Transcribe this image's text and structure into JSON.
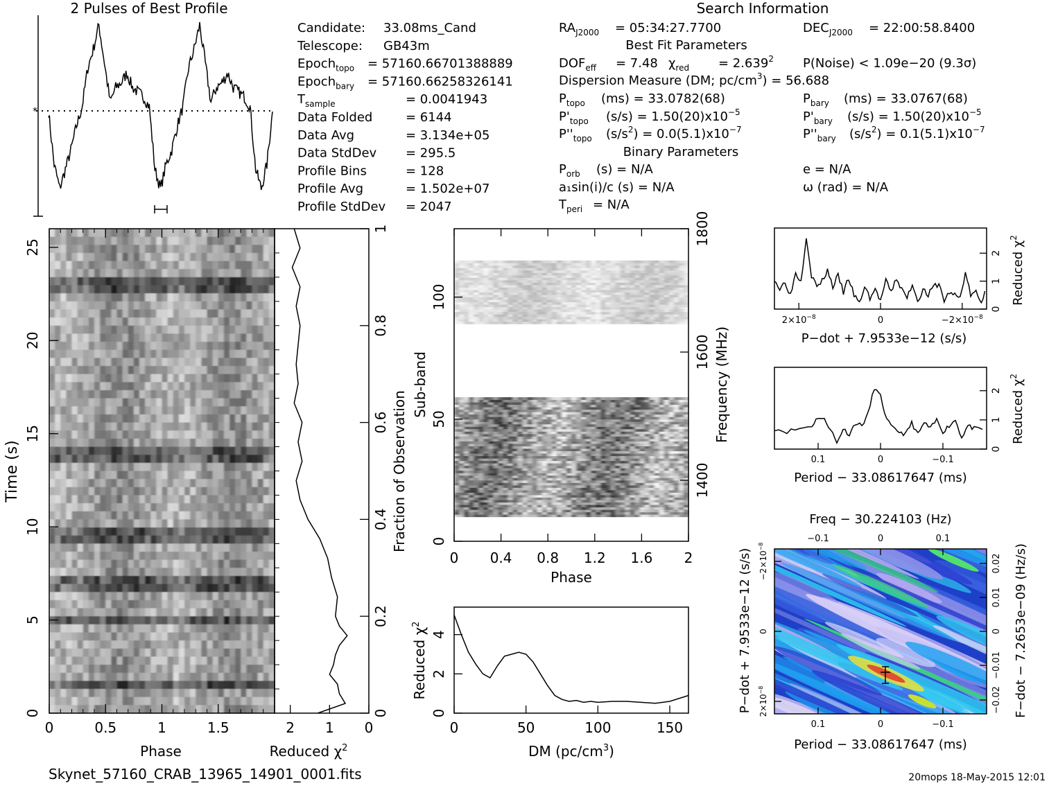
{
  "page": {
    "title_profile": "2 Pulses of Best Profile",
    "title_search": "Search Information",
    "filename": "Skynet_57160_CRAB_13965_14901_0001.fits",
    "footer": "20mops 18-May-2015 12:01"
  },
  "info": {
    "left": [
      {
        "label": "Candidate:",
        "value": "33.08ms_Cand"
      },
      {
        "label": "Telescope:",
        "value": "GB43m"
      },
      {
        "label": "Epoch",
        "sub": "topo",
        "value": "= 57160.66701388889"
      },
      {
        "label": "Epoch",
        "sub": "bary",
        "value": "= 57160.66258326141"
      },
      {
        "label": "T",
        "sub": "sample",
        "value": "=   0.0041943"
      },
      {
        "label": "Data Folded",
        "value": "=   6144"
      },
      {
        "label": "Data Avg",
        "value": "=   3.134e+05"
      },
      {
        "label": "Data StdDev",
        "value": "=   295.5"
      },
      {
        "label": "Profile Bins",
        "value": "=   128"
      },
      {
        "label": "Profile Avg",
        "value": "=   1.502e+07"
      },
      {
        "label": "Profile StdDev",
        "value": "=   2047"
      }
    ],
    "ra": {
      "label": "RA",
      "sub": "J2000",
      "value": "= 05:34:27.7700"
    },
    "dec": {
      "label": "DEC",
      "sub": "J2000",
      "value": "= 22:00:58.8400"
    },
    "best_fit_title": "Best Fit Parameters",
    "dof": {
      "label": "DOF",
      "sub": "eff",
      "value": "= 7.48"
    },
    "chi2": {
      "label": "χ",
      "sup": "2",
      "sub": "red",
      "value": "= 2.639"
    },
    "pnoise": "P(Noise) < 1.09e−20   (9.3σ)",
    "dm": {
      "text": "Dispersion Measure (DM; pc/cm",
      "sup": "3",
      "tail": ") = 56.688"
    },
    "p_topo": {
      "label": "P",
      "sub": "topo",
      "value": "(ms) =  33.0782(68)"
    },
    "pd_topo": {
      "label": "P'",
      "sub": "topo",
      "value": "(s/s) =  1.50(20)x10",
      "exp": "−5"
    },
    "pdd_topo": {
      "label": "P''",
      "sub": "topo",
      "value": "(s/s",
      "sup": "2",
      "tail": ") = 0.0(5.1)x10",
      "exp": "−7"
    },
    "p_bary": {
      "label": "P",
      "sub": "bary",
      "value": "(ms) =  33.0767(68)"
    },
    "pd_bary": {
      "label": "P'",
      "sub": "bary",
      "value": "(s/s) =  1.50(20)x10",
      "exp": "−5"
    },
    "pdd_bary": {
      "label": "P''",
      "sub": "bary",
      "value": "(s/s",
      "sup": "2",
      "tail": ") =  0.1(5.1)x10",
      "exp": "−7"
    },
    "binary_title": "Binary Parameters",
    "porb": {
      "label": "P",
      "sub": "orb",
      "value": "(s) = N/A"
    },
    "a1": "a₁sin(i)/c (s) = N/A",
    "tperi": {
      "label": "T",
      "sub": "peri",
      "value": "= N/A"
    },
    "ecc": "e = N/A",
    "omega": "ω (rad) = N/A"
  },
  "colors": {
    "ink": "#000000",
    "stripe_dark": "#1a1a1a"
  },
  "chart_data": [
    {
      "type": "line",
      "name": "profile",
      "title": "2 Pulses of Best Profile",
      "xlim": [
        0,
        2
      ],
      "mean_line": "dotted",
      "x": [
        0.0,
        0.05,
        0.1,
        0.15,
        0.2,
        0.25,
        0.3,
        0.35,
        0.4,
        0.45,
        0.5,
        0.55,
        0.6,
        0.65,
        0.7,
        0.75,
        0.8,
        0.85,
        0.9,
        0.95,
        1.0,
        1.05,
        1.1,
        1.15,
        1.2,
        1.25,
        1.3,
        1.35,
        1.4,
        1.45,
        1.5,
        1.55,
        1.6,
        1.65,
        1.7,
        1.75,
        1.8,
        1.85,
        1.9,
        1.95,
        2.0
      ],
      "y": [
        0.0,
        -1.1,
        -1.6,
        -1.2,
        -0.8,
        -0.3,
        0.1,
        0.9,
        1.3,
        1.8,
        1.0,
        0.2,
        0.5,
        0.6,
        0.8,
        0.5,
        0.4,
        0.3,
        0.1,
        -1.2,
        -1.6,
        -1.1,
        -0.8,
        -0.3,
        0.1,
        0.9,
        1.3,
        1.8,
        1.0,
        0.2,
        0.5,
        0.6,
        0.8,
        0.5,
        0.4,
        0.3,
        0.1,
        -1.2,
        -1.6,
        -1.1,
        0.0
      ]
    },
    {
      "type": "heatmap",
      "name": "time-phase",
      "xlabel": "Phase",
      "ylabel": "Time (s)",
      "xlim": [
        0,
        2
      ],
      "ylim": [
        0,
        26
      ],
      "xticks": [
        "0",
        "0.5",
        "1",
        "1.5"
      ],
      "yticks": [
        "0",
        "5",
        "10",
        "15",
        "20",
        "25"
      ],
      "right_axis_label": "Fraction of Observation",
      "right_ticks": [
        "0",
        "0.2",
        "0.4",
        "0.6",
        "0.8",
        "1"
      ],
      "dark_rows_s": [
        23.0,
        9.5,
        5.0,
        7.0,
        1.5,
        14.0
      ],
      "colormap": "grayscale"
    },
    {
      "type": "line",
      "name": "reduced-chi2-time",
      "xlabel": "Reduced χ",
      "xlabel_sup": "2",
      "xticks": [
        "2",
        "1",
        "0"
      ],
      "xlim": [
        2.4,
        0
      ],
      "y_frac": [
        0.0,
        0.02,
        0.04,
        0.06,
        0.08,
        0.1,
        0.12,
        0.14,
        0.16,
        0.18,
        0.2,
        0.24,
        0.28,
        0.32,
        0.36,
        0.4,
        0.44,
        0.48,
        0.52,
        0.56,
        0.6,
        0.64,
        0.68,
        0.72,
        0.76,
        0.8,
        0.84,
        0.88,
        0.92,
        0.96,
        1.0
      ],
      "x": [
        1.3,
        0.6,
        0.75,
        0.8,
        1.0,
        0.9,
        0.85,
        0.75,
        0.55,
        0.75,
        0.85,
        0.8,
        0.95,
        1.05,
        1.25,
        1.55,
        1.75,
        1.85,
        1.7,
        1.8,
        1.7,
        1.9,
        1.8,
        1.85,
        1.8,
        1.75,
        1.85,
        1.75,
        1.95,
        1.75,
        1.9
      ]
    },
    {
      "type": "heatmap",
      "name": "subband-phase",
      "xlabel": "Phase",
      "ylabel": "Sub-band",
      "xlim": [
        0,
        2
      ],
      "ylim": [
        0,
        128
      ],
      "xticks": [
        "0",
        "0.4",
        "0.8",
        "1.2",
        "1.6",
        "2"
      ],
      "yticks": [
        "0",
        "50",
        "100"
      ],
      "right_axis_label": "Frequency (MHz)",
      "right_ticks": [
        "1400",
        "1600",
        "1800"
      ],
      "data_bands_subband": [
        [
          10,
          59
        ],
        [
          89,
          115
        ]
      ],
      "colormap": "grayscale"
    },
    {
      "type": "line",
      "name": "dm-chi2",
      "xlabel": "DM (pc/cm",
      "xlabel_sup": "3",
      "xlabel_tail": ")",
      "ylabel": "Reduced χ",
      "ylabel_sup": "2",
      "xlim": [
        0,
        163
      ],
      "ylim": [
        0,
        5.4
      ],
      "xticks": [
        "0",
        "50",
        "100",
        "150"
      ],
      "yticks": [
        "0",
        "2",
        "4"
      ],
      "x": [
        0,
        5,
        10,
        15,
        20,
        25,
        30,
        35,
        40,
        45,
        50,
        55,
        60,
        65,
        70,
        75,
        80,
        85,
        90,
        95,
        100,
        110,
        120,
        130,
        140,
        150,
        163
      ],
      "y": [
        5.0,
        4.0,
        3.1,
        2.5,
        2.0,
        1.8,
        2.4,
        2.9,
        3.0,
        3.1,
        3.0,
        2.6,
        2.0,
        1.4,
        0.9,
        0.7,
        0.6,
        0.65,
        0.55,
        0.6,
        0.55,
        0.6,
        0.6,
        0.55,
        0.5,
        0.6,
        0.9
      ]
    },
    {
      "type": "line",
      "name": "pdot-chi2",
      "xlabel": "P−dot + 7.9533e−12 (s/s)",
      "ylabel": "Reduced χ",
      "ylabel_sup": "2",
      "xticks": [
        "2×10",
        "0",
        "−2×10"
      ],
      "xtick_exp": "−8",
      "yticks": [
        "0",
        "1",
        "2"
      ],
      "xlim": [
        1,
        -1
      ],
      "ylim": [
        0,
        2.9
      ],
      "x": [
        1.0,
        0.95,
        0.9,
        0.85,
        0.8,
        0.75,
        0.7,
        0.65,
        0.6,
        0.55,
        0.5,
        0.45,
        0.4,
        0.35,
        0.3,
        0.25,
        0.2,
        0.15,
        0.1,
        0.05,
        0.0,
        -0.05,
        -0.1,
        -0.15,
        -0.2,
        -0.25,
        -0.3,
        -0.35,
        -0.4,
        -0.45,
        -0.5,
        -0.55,
        -0.6,
        -0.65,
        -0.7,
        -0.75,
        -0.8,
        -0.85,
        -0.9,
        -0.95,
        -1.0
      ],
      "y": [
        1.1,
        0.7,
        1.0,
        0.5,
        1.3,
        1.0,
        2.6,
        1.2,
        0.8,
        1.0,
        1.4,
        0.8,
        1.2,
        0.6,
        1.1,
        0.5,
        0.2,
        0.8,
        0.4,
        0.7,
        0.3,
        1.0,
        0.6,
        1.1,
        0.7,
        0.4,
        0.9,
        0.3,
        0.7,
        0.5,
        0.8,
        0.9,
        0.3,
        0.6,
        0.5,
        0.4,
        1.3,
        0.5,
        0.6,
        0.2,
        0.9
      ]
    },
    {
      "type": "line",
      "name": "period-chi2",
      "xlabel": "Period − 33.08617647 (ms)",
      "ylabel": "Reduced χ",
      "ylabel_sup": "2",
      "xticks": [
        "0.1",
        "0",
        "−0.1"
      ],
      "yticks": [
        "0",
        "1",
        "2"
      ],
      "xlim": [
        0.17,
        -0.17
      ],
      "ylim": [
        0,
        2.8
      ],
      "x": [
        0.17,
        0.15,
        0.13,
        0.11,
        0.1,
        0.09,
        0.08,
        0.07,
        0.06,
        0.05,
        0.04,
        0.03,
        0.02,
        0.01,
        0.0,
        -0.01,
        -0.02,
        -0.03,
        -0.04,
        -0.05,
        -0.06,
        -0.07,
        -0.08,
        -0.09,
        -0.1,
        -0.11,
        -0.12,
        -0.13,
        -0.14,
        -0.15,
        -0.17
      ],
      "y": [
        0.7,
        0.6,
        0.7,
        0.8,
        1.1,
        1.0,
        0.7,
        0.2,
        0.7,
        0.5,
        0.9,
        0.8,
        1.2,
        2.1,
        1.8,
        1.0,
        0.7,
        0.6,
        0.5,
        0.9,
        0.5,
        0.9,
        0.7,
        1.0,
        0.6,
        0.8,
        1.0,
        0.4,
        0.8,
        0.7,
        0.6
      ]
    },
    {
      "type": "heatmap",
      "name": "period-pdot",
      "title": "Freq − 30.224103 (Hz)",
      "xlabel": "Period − 33.08617647 (ms)",
      "ylabel": "P−dot + 7.9533e−12 (s/s)",
      "right_axis_label": "F−dot − 7.2653e−09 (Hz/s)",
      "xticks": [
        "0.1",
        "0",
        "−0.1"
      ],
      "top_ticks": [
        "−0.1",
        "0",
        "0.1"
      ],
      "yticks": [
        "2×10",
        "0",
        "−2×10"
      ],
      "ytick_exp": "−8",
      "right_ticks": [
        "−0.02",
        "−0.01",
        "0",
        "0.01",
        "0.02"
      ],
      "best_fit_marker": {
        "period": 0.0,
        "pdot": 2.2e-09
      },
      "colormap": "rainbow"
    }
  ]
}
